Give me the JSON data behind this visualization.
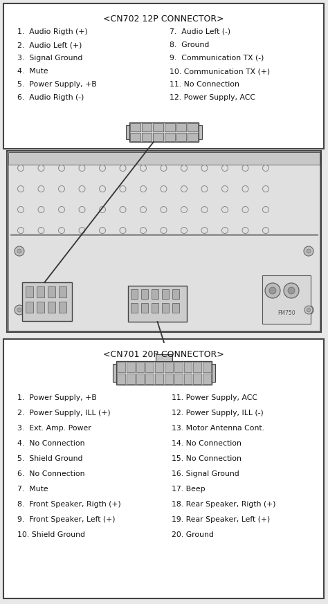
{
  "cn702_title": "<CN702 12P CONNECTOR>",
  "cn702_left": [
    "1.  Audio Rigth (+)",
    "2.  Audio Left (+)",
    "3.  Signal Ground",
    "4.  Mute",
    "5.  Power Supply, +B",
    "6.  Audio Rigth (-)"
  ],
  "cn702_right": [
    "7.  Audio Left (-)",
    "8.  Ground",
    "9.  Communication TX (-)",
    "10. Communication TX (+)",
    "11. No Connection",
    "12. Power Supply, ACC"
  ],
  "cn701_title": "<CN701 20P CONNECTOR>",
  "cn701_left": [
    "1.  Power Supply, +B",
    "2.  Power Supply, ILL (+)",
    "3.  Ext. Amp. Power",
    "4.  No Connection",
    "5.  Shield Ground",
    "6.  No Connection",
    "7.  Mute",
    "8.  Front Speaker, Rigth (+)",
    "9.  Front Speaker, Left (+)",
    "10. Shield Ground"
  ],
  "cn701_right": [
    "11. Power Supply, ACC",
    "12. Power Supply, ILL (-)",
    "13. Motor Antenna Cont.",
    "14. No Connection",
    "15. No Connection",
    "16. Signal Ground",
    "17. Beep",
    "18. Rear Speaker, Rigth (+)",
    "19. Rear Speaker, Left (+)",
    "20. Ground"
  ],
  "bg_color": "#e8e8e8",
  "box_color": "#ffffff",
  "border_color": "#333333",
  "text_color": "#111111"
}
